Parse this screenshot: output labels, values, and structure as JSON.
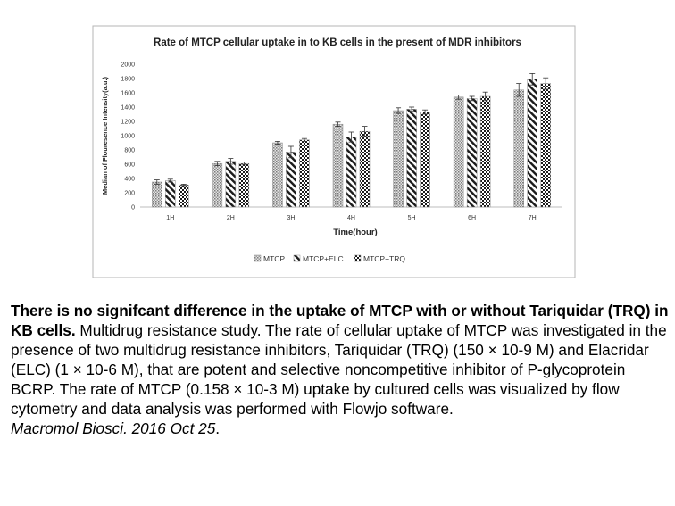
{
  "chart_data": {
    "type": "bar",
    "title": "Rate of MTCP cellular uptake in to KB cells in the present of MDR inhibitors",
    "xlabel": "Time(hour)",
    "ylabel": "Median of Flouresence Intensity(a.u.)",
    "ylim": [
      0,
      2000
    ],
    "yticks": [
      0,
      200,
      400,
      600,
      800,
      1000,
      1200,
      1400,
      1600,
      1800,
      2000
    ],
    "categories": [
      "1H",
      "2H",
      "3H",
      "4H",
      "5H",
      "6H",
      "7H"
    ],
    "grid": false,
    "legend_position": "bottom",
    "series": [
      {
        "name": "MTCP",
        "pattern": "dots",
        "color": "#9a9a9a",
        "values": [
          350,
          610,
          900,
          1160,
          1350,
          1540,
          1640
        ],
        "errors": [
          30,
          30,
          20,
          30,
          40,
          30,
          90
        ]
      },
      {
        "name": "MTCP+ELC",
        "pattern": "diagonal",
        "color": "#222222",
        "values": [
          370,
          640,
          770,
          980,
          1370,
          1520,
          1790
        ],
        "errors": [
          20,
          40,
          80,
          70,
          30,
          30,
          80
        ]
      },
      {
        "name": "MTCP+TRQ",
        "pattern": "checker",
        "color": "#222222",
        "values": [
          310,
          610,
          940,
          1060,
          1330,
          1550,
          1730
        ],
        "errors": [
          10,
          20,
          20,
          70,
          30,
          60,
          80
        ]
      }
    ]
  },
  "caption": {
    "lead": "There is no signifcant difference in the uptake of MTCP with or without Tariquidar (TRQ) in KB cells.",
    "body": " Multidrug resistance study. The rate of cellular uptake of MTCP was investigated in the presence of two multidrug resistance inhibitors, Tariquidar (TRQ) (150 × 10-9 M) and Elacridar (ELC) (1 × 10-6 M), that are potent and selective noncompetitive inhibitor of P-glycoprotein BCRP. The rate of MTCP (0.158 × 10-3 M) uptake by cultured cells was visualized by flow cytometry and data analysis was performed with Flowjo software.",
    "citation": "Macromol Biosci. 2016 Oct 25",
    "citation_end": "."
  }
}
